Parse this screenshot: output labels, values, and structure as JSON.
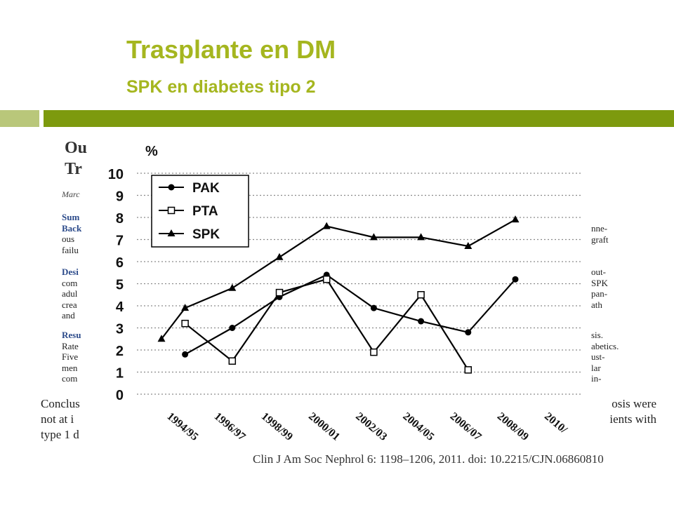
{
  "title": "Trasplante en DM",
  "subtitle": "SPK en diabetes tipo 2",
  "background_article": {
    "heading_lines": [
      "Ou",
      "Tr"
    ],
    "author_fragment": "Marc",
    "summary_lines": [
      {
        "text": "Sum",
        "head": true
      },
      {
        "text": "Back",
        "head": true
      },
      {
        "text": "ous",
        "head": false
      },
      {
        "text": "failu",
        "head": false
      }
    ],
    "design_lines": [
      {
        "text": "Desi",
        "head": true
      },
      {
        "text": "com",
        "head": false
      },
      {
        "text": "adul",
        "head": false
      },
      {
        "text": "crea",
        "head": false
      },
      {
        "text": "and",
        "head": false
      }
    ],
    "results_lines": [
      {
        "text": "Resu",
        "head": true
      },
      {
        "text": "Rate",
        "head": false
      },
      {
        "text": "Five",
        "head": false
      },
      {
        "text": "men",
        "head": false
      },
      {
        "text": "com",
        "head": false
      }
    ],
    "right_lines_top": [
      "nne-",
      "graft"
    ],
    "right_lines_mid": [
      "out-",
      "SPK",
      "pan-",
      "ath"
    ],
    "right_lines_bottom": [
      "sis.",
      "abetics.",
      "ust-",
      "lar",
      "in-"
    ],
    "conclusion_left": [
      "Conclus",
      "not at i",
      "type 1 d"
    ],
    "conclusion_right": [
      "osis were",
      "ients with"
    ],
    "citation": "Clin J Am Soc Nephrol 6: 1198–1206, 2011. doi: 10.2215/CJN.06860810"
  },
  "chart_data": {
    "type": "line",
    "ylabel": "%",
    "ylim": [
      0,
      10
    ],
    "yticks": [
      0,
      1,
      2,
      3,
      4,
      5,
      6,
      7,
      8,
      9,
      10
    ],
    "grid": "horizontal-dotted",
    "legend_position": "top-left",
    "categories": [
      "1994/95",
      "1996/97",
      "1998/99",
      "2000/01",
      "2002/03",
      "2004/05",
      "2006/07",
      "2008/09",
      "2010/"
    ],
    "x_positions": [
      1994.5,
      1995.5,
      1996.5,
      1997.5,
      1998.5,
      1999.5,
      2000.5,
      2001.5,
      2002.5,
      2003.5,
      2004.5,
      2005.5,
      2006.5,
      2007.5,
      2008.5,
      2009.5,
      2010.5
    ],
    "series": [
      {
        "name": "PAK",
        "marker": "circle",
        "x": [
          "1995/96",
          "1997/98",
          "1999/00",
          "2001/02",
          "2003/04",
          "2005/06",
          "2007/08",
          "2009/10"
        ],
        "values": [
          1.8,
          3.0,
          4.4,
          5.4,
          3.9,
          3.3,
          2.8,
          5.2
        ]
      },
      {
        "name": "PTA",
        "marker": "open-square",
        "x": [
          "1995/96",
          "1997/98",
          "1999/00",
          "2001/02",
          "2003/04",
          "2005/06",
          "2007/08"
        ],
        "values": [
          3.2,
          1.5,
          4.6,
          5.2,
          1.9,
          4.5,
          1.1
        ]
      },
      {
        "name": "SPK",
        "marker": "triangle",
        "x": [
          "1994/95",
          "1995/96",
          "1997/98",
          "1999/00",
          "2001/02",
          "2003/04",
          "2005/06",
          "2007/08",
          "2009/10"
        ],
        "values": [
          2.5,
          3.9,
          4.8,
          6.2,
          7.6,
          7.1,
          7.1,
          6.7,
          7.9
        ]
      }
    ]
  }
}
